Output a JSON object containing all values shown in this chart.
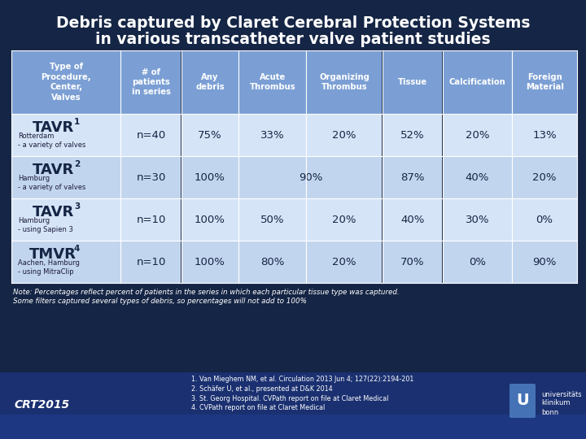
{
  "title_line1": "Debris captured by Claret Cerebral Protection Systems",
  "title_line2": "in various transcatheter valve patient studies",
  "bg_dark": "#152545",
  "header_bg": "#7B9FD4",
  "row_bg_light": "#D6E4F7",
  "row_bg_mid": "#C2D5EE",
  "col_headers": [
    "Type of\nProcedure,\nCenter,\nValves",
    "# of\npatients\nin series",
    "Any\ndebris",
    "Acute\nThrombus",
    "Organizing\nThrombus",
    "Tissue",
    "Calcification",
    "Foreign\nMaterial"
  ],
  "rows": [
    {
      "label": "TAVR",
      "superscript": "1",
      "sublabel": "Rotterdam\n- a variety of valves",
      "n": "n=40",
      "any": "75%",
      "acute": "33%",
      "organizing": "20%",
      "tissue": "52%",
      "calcification": "20%",
      "foreign": "13%",
      "merge_acute_org": false
    },
    {
      "label": "TAVR",
      "superscript": "2",
      "sublabel": "Hamburg\n- a variety of valves",
      "n": "n=30",
      "any": "100%",
      "acute": "",
      "organizing": "90%",
      "tissue": "87%",
      "calcification": "40%",
      "foreign": "20%",
      "merge_acute_org": true
    },
    {
      "label": "TAVR",
      "superscript": "3",
      "sublabel": "Hamburg\n- using Sapien 3",
      "n": "n=10",
      "any": "100%",
      "acute": "50%",
      "organizing": "20%",
      "tissue": "40%",
      "calcification": "30%",
      "foreign": "0%",
      "merge_acute_org": false
    },
    {
      "label": "TMVR",
      "superscript": "4",
      "sublabel": "Aachen, Hamburg\n- using MitraClip",
      "n": "n=10",
      "any": "100%",
      "acute": "80%",
      "organizing": "20%",
      "tissue": "70%",
      "calcification": "0%",
      "foreign": "90%",
      "merge_acute_org": false
    }
  ],
  "note_line1": "Note: Percentages reflect percent of patients in the series in which each particular tissue type was captured.",
  "note_line2": "Some filters captured several types of debris, so percentages will not add to 100%",
  "refs": [
    "1. Van Mieghem NM, et al. Circulation 2013 Jun 4; 127(22):2194-201",
    "2. Schäfer U, et al., presented at D&K 2014",
    "3. St. Georg Hospital. CVPath report on file at Claret Medical",
    "4. CVPath report on file at Claret Medical"
  ],
  "footer_left": "CRT2015"
}
